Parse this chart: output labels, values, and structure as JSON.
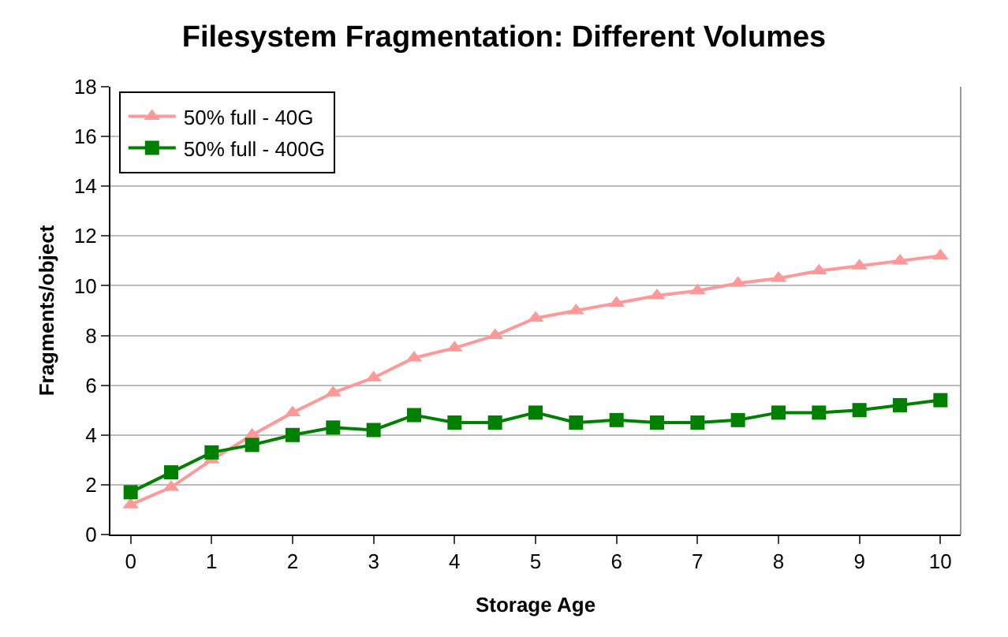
{
  "chart_data": {
    "type": "line",
    "title": "Filesystem Fragmentation: Different Volumes",
    "xlabel": "Storage Age",
    "ylabel": "Fragments/object",
    "x": [
      0,
      0.5,
      1,
      1.5,
      2,
      2.5,
      3,
      3.5,
      4,
      4.5,
      5,
      5.5,
      6,
      6.5,
      7,
      7.5,
      8,
      8.5,
      9,
      9.5,
      10
    ],
    "series": [
      {
        "name": "50% full - 40G",
        "color": "#ff9999",
        "marker": "triangle",
        "values": [
          1.2,
          1.9,
          3.0,
          4.0,
          4.9,
          5.7,
          6.3,
          7.1,
          7.5,
          8.0,
          8.7,
          9.0,
          9.3,
          9.6,
          9.8,
          10.1,
          10.3,
          10.6,
          10.8,
          11.0,
          11.2
        ]
      },
      {
        "name": "50% full - 400G",
        "color": "#008000",
        "marker": "square",
        "values": [
          1.7,
          2.5,
          3.3,
          3.6,
          4.0,
          4.3,
          4.2,
          4.8,
          4.5,
          4.5,
          4.9,
          4.5,
          4.6,
          4.5,
          4.5,
          4.6,
          4.9,
          4.9,
          5.0,
          5.2,
          5.4
        ]
      }
    ],
    "xlim": [
      -0.25,
      10.25
    ],
    "xticks": [
      0,
      1,
      2,
      3,
      4,
      5,
      6,
      7,
      8,
      9,
      10
    ],
    "ylim": [
      0,
      18
    ],
    "yticks": [
      0,
      2,
      4,
      6,
      8,
      10,
      12,
      14,
      16,
      18
    ],
    "grid": "y",
    "legend": "top left"
  }
}
